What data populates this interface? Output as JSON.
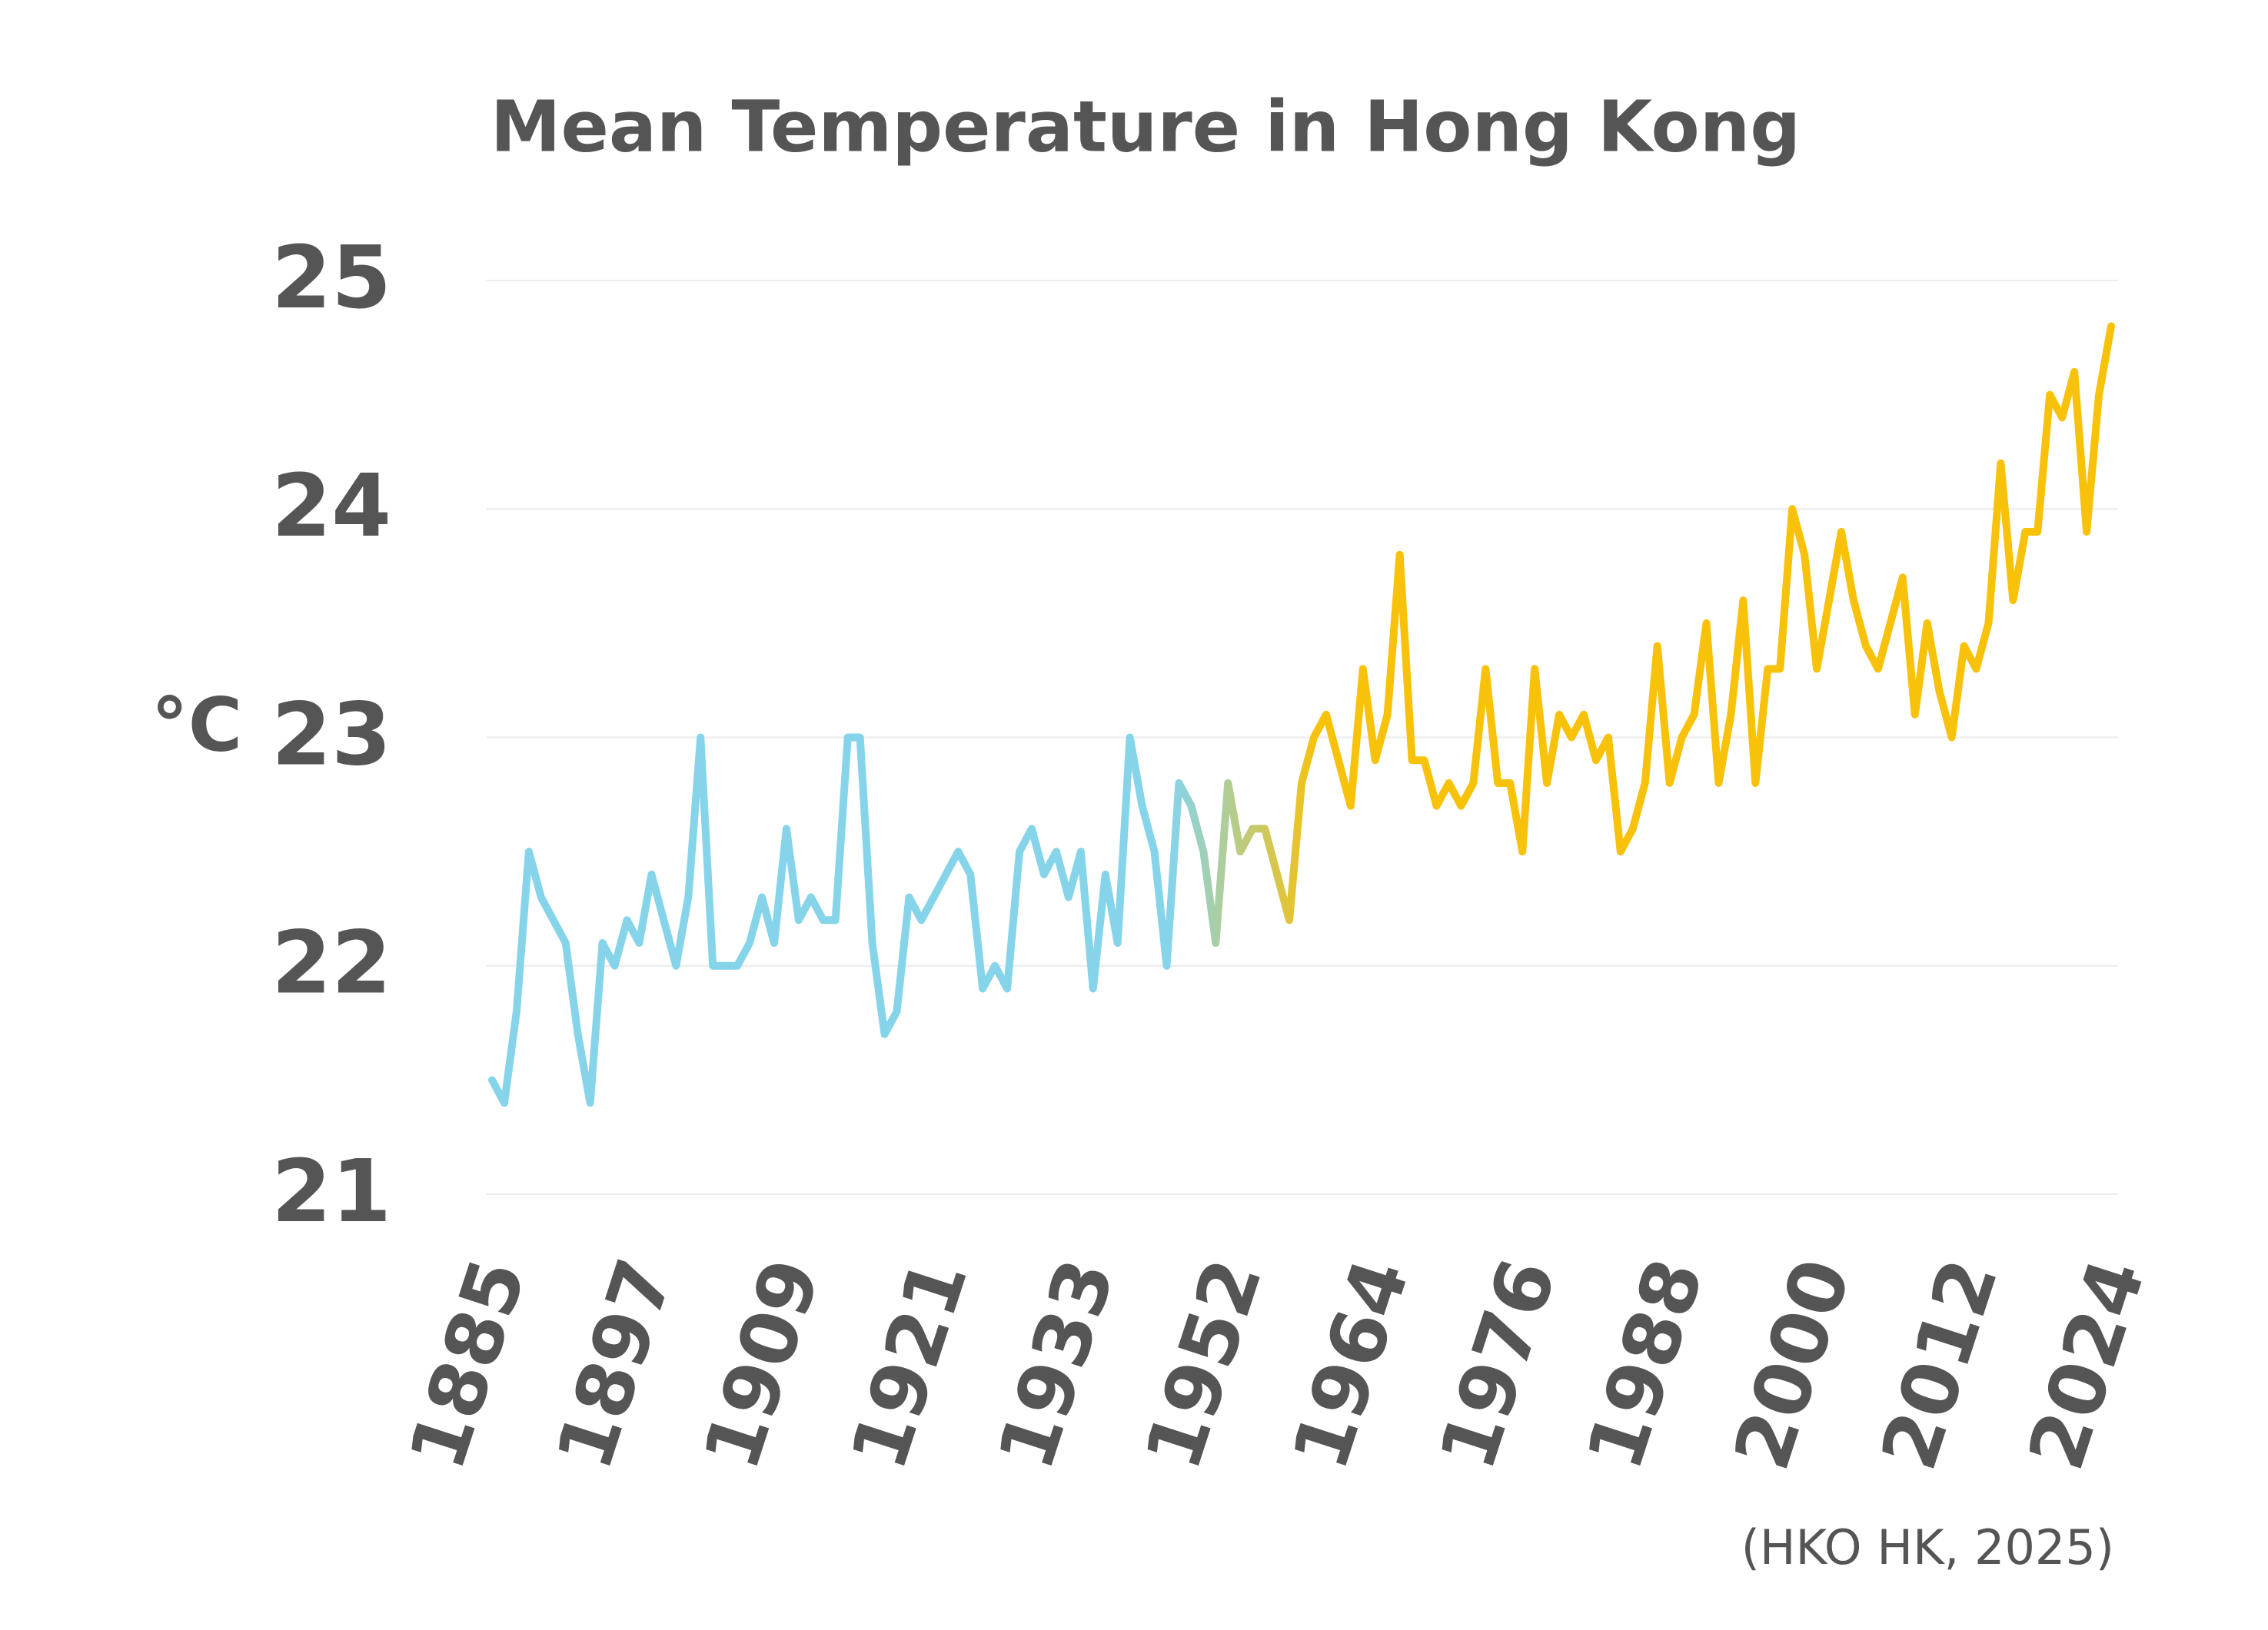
{
  "chart_data": {
    "type": "line",
    "title": "Mean Temperature in Hong Kong",
    "y_label": "°C",
    "source": "(HKO HK, 2025)",
    "categories": [
      "1885",
      null,
      null,
      null,
      null,
      null,
      null,
      null,
      null,
      null,
      null,
      null,
      "1897",
      null,
      null,
      null,
      null,
      null,
      null,
      null,
      null,
      null,
      null,
      null,
      "1909",
      null,
      null,
      null,
      null,
      null,
      null,
      null,
      null,
      null,
      null,
      null,
      "1921",
      null,
      null,
      null,
      null,
      null,
      null,
      null,
      null,
      null,
      null,
      null,
      "1933",
      null,
      null,
      null,
      null,
      null,
      null,
      null,
      null,
      null,
      null,
      null,
      "1952",
      null,
      null,
      null,
      null,
      null,
      null,
      null,
      null,
      null,
      null,
      null,
      "1964",
      null,
      null,
      null,
      null,
      null,
      null,
      null,
      null,
      null,
      null,
      null,
      "1976",
      null,
      null,
      null,
      null,
      null,
      null,
      null,
      null,
      null,
      null,
      null,
      "1988",
      null,
      null,
      null,
      null,
      null,
      null,
      null,
      null,
      null,
      null,
      null,
      "2000",
      null,
      null,
      null,
      null,
      null,
      null,
      null,
      null,
      null,
      null,
      null,
      "2012",
      null,
      null,
      null,
      null,
      null,
      null,
      null,
      null,
      null,
      null,
      null,
      "2024"
    ],
    "series": [
      {
        "colors": [
          "#86d4ea",
          "#f8c10a"
        ],
        "values": [
          21.5,
          21.4,
          21.8,
          22.5,
          22.3,
          22.2,
          22.1,
          21.7,
          21.4,
          22.1,
          22.0,
          22.2,
          22.1,
          22.4,
          22.2,
          22.0,
          22.3,
          23.0,
          22.0,
          22.0,
          22.0,
          22.1,
          22.3,
          22.1,
          22.6,
          22.2,
          22.3,
          22.2,
          22.2,
          23.0,
          23.0,
          22.1,
          21.7,
          21.8,
          22.3,
          22.2,
          22.3,
          22.4,
          22.5,
          22.4,
          21.9,
          22.0,
          21.9,
          22.5,
          22.6,
          22.4,
          22.5,
          22.3,
          22.5,
          21.9,
          22.4,
          22.1,
          23.0,
          22.7,
          22.5,
          22.0,
          22.8,
          22.7,
          22.5,
          22.1,
          22.8,
          22.5,
          22.6,
          22.6,
          22.4,
          22.2,
          22.8,
          23.0,
          23.1,
          22.9,
          22.7,
          23.3,
          22.9,
          23.1,
          23.8,
          22.9,
          22.9,
          22.7,
          22.8,
          22.7,
          22.8,
          23.3,
          22.8,
          22.8,
          22.5,
          23.3,
          22.8,
          23.1,
          23.0,
          23.1,
          22.9,
          23.0,
          22.5,
          22.6,
          22.8,
          23.4,
          22.8,
          23.0,
          23.1,
          23.5,
          22.8,
          23.1,
          23.6,
          22.8,
          23.3,
          23.3,
          24.0,
          23.8,
          23.3,
          23.6,
          23.9,
          23.6,
          23.4,
          23.3,
          23.5,
          23.7,
          23.1,
          23.5,
          23.2,
          23.0,
          23.4,
          23.3,
          23.5,
          24.2,
          23.6,
          23.9,
          23.9,
          24.5,
          24.4,
          24.6,
          23.9,
          24.5,
          24.8
        ]
      }
    ],
    "ylim": [
      21,
      25
    ],
    "yticks": [
      21,
      22,
      23,
      24,
      25
    ],
    "grid": true
  }
}
